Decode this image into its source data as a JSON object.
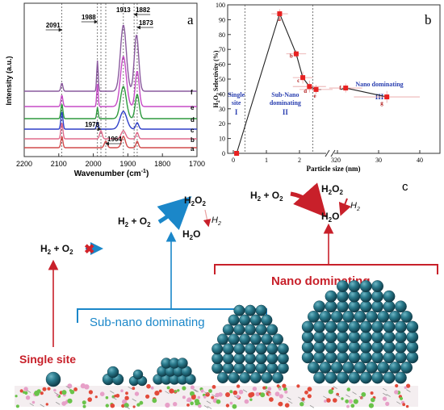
{
  "chart_data": [
    {
      "type": "line",
      "panel_label": "a",
      "xlabel": "Wavenumber (cm",
      "xlabel_sup": "-1",
      "xlabel_end": ")",
      "ylabel": "Intensity (a.u.)",
      "xlim": [
        2200,
        1700
      ],
      "x_ticks": [
        2200,
        2100,
        2000,
        1900,
        1800,
        1700
      ],
      "peak_labels": [
        "2091",
        "1988",
        "1913",
        "1882",
        "1873",
        "1978",
        "1964"
      ],
      "peak_positions": [
        2091,
        1988,
        1913,
        1882,
        1873,
        1978,
        1964
      ],
      "series": [
        {
          "name": "a",
          "color": "#d24b4b"
        },
        {
          "name": "b",
          "color": "#e06a8a"
        },
        {
          "name": "c",
          "color": "#2f3fc9"
        },
        {
          "name": "d",
          "color": "#2e9a3e"
        },
        {
          "name": "e",
          "color": "#c64bc6"
        },
        {
          "name": "f",
          "color": "#8a5a9e"
        }
      ]
    },
    {
      "type": "scatter",
      "panel_label": "b",
      "xlabel": "Particle size (nm)",
      "ylabel": "H2O2 Selectivity (%)",
      "ylabel_parts": [
        "H",
        "2",
        "O",
        "2",
        " Selectivity (%)"
      ],
      "ylim": [
        0,
        100
      ],
      "y_ticks": [
        0,
        10,
        20,
        30,
        40,
        50,
        60,
        70,
        80,
        90,
        100
      ],
      "x_ticks": [
        "0",
        "1",
        "2",
        "3",
        "20",
        "30",
        "40"
      ],
      "points": [
        {
          "x": 0.1,
          "y": 0,
          "label": ""
        },
        {
          "x": 1.4,
          "y": 94,
          "label": "a"
        },
        {
          "x": 1.9,
          "y": 67,
          "label": "b"
        },
        {
          "x": 2.1,
          "y": 51,
          "label": "c"
        },
        {
          "x": 2.3,
          "y": 45,
          "label": "d"
        },
        {
          "x": 2.5,
          "y": 43,
          "label": "e"
        },
        {
          "x": 22,
          "y": 44,
          "label": "f"
        },
        {
          "x": 32,
          "y": 38,
          "label": "g"
        }
      ],
      "regions": [
        {
          "name": "Single site",
          "roman": "I"
        },
        {
          "name": "Sub-Nano dominating",
          "roman": "II"
        },
        {
          "name": "Nano dominating",
          "roman": "III"
        }
      ],
      "color": "#e82020"
    }
  ],
  "panel_c": {
    "panel_label": "c",
    "sub_nano": "Sub-nano dominating",
    "nano": "Nano dominating",
    "single_site": "Single site",
    "reactants": "H2 + O2",
    "products": {
      "h2o2": "H2O2",
      "h2o": "H2O",
      "h2": "H2"
    }
  }
}
